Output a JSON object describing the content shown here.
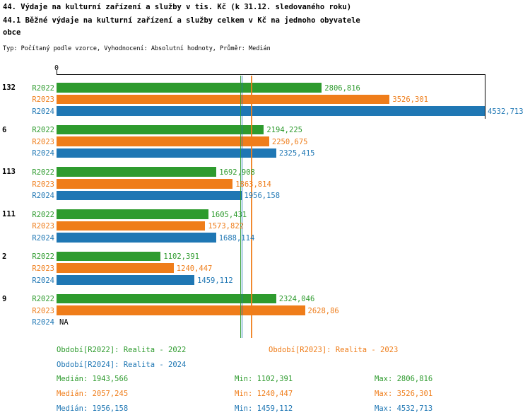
{
  "title_line1": "44. Výdaje na kulturní zařízení a služby v tis. Kč (k 31.12. sledovaného roku)",
  "title_line2": "44.1 Běžné výdaje na kulturní zařízení a služby celkem v Kč na jednoho obyvatele obce",
  "subtitle": "Typ: Počítaný podle vzorce, Vyhodnocení: Absolutní hodnoty, Průměr: Medián",
  "axis_zero_label": "0",
  "colors": {
    "r2022": "#2e9b2e",
    "r2023": "#ef7d1a",
    "r2024": "#1f77b4",
    "axis": "#000000",
    "na_text": "#000000"
  },
  "chart_data": {
    "type": "bar",
    "orientation": "horizontal",
    "value_axis_min": 0,
    "value_axis_max": 4532.713,
    "grid": false,
    "series": [
      "R2022",
      "R2023",
      "R2024"
    ],
    "groups": [
      {
        "label": "132",
        "values": [
          2806.816,
          3526.301,
          4532.713
        ],
        "labels": [
          "2806,816",
          "3526,301",
          "4532,713"
        ]
      },
      {
        "label": "6",
        "values": [
          2194.225,
          2250.675,
          2325.415
        ],
        "labels": [
          "2194,225",
          "2250,675",
          "2325,415"
        ]
      },
      {
        "label": "113",
        "values": [
          1692.908,
          1863.814,
          1956.158
        ],
        "labels": [
          "1692,908",
          "1863,814",
          "1956,158"
        ]
      },
      {
        "label": "111",
        "values": [
          1605.431,
          1573.822,
          1688.114
        ],
        "labels": [
          "1605,431",
          "1573,822",
          "1688,114"
        ]
      },
      {
        "label": "2",
        "values": [
          1102.391,
          1240.447,
          1459.112
        ],
        "labels": [
          "1102,391",
          "1240,447",
          "1459,112"
        ]
      },
      {
        "label": "9",
        "values": [
          2324.046,
          2628.86,
          null
        ],
        "labels": [
          "2324,046",
          "2628,86",
          "NA"
        ]
      }
    ],
    "medians": {
      "R2022": 1943.566,
      "R2023": 2057.245,
      "R2024": 1956.158
    },
    "na_label": "NA"
  },
  "legend": [
    {
      "series": "R2022",
      "label": "Období[R2022]: Realita - 2022"
    },
    {
      "series": "R2023",
      "label": "Období[R2023]: Realita - 2023"
    },
    {
      "series": "R2024",
      "label": "Období[R2024]: Realita - 2024"
    }
  ],
  "stats": [
    {
      "series": "R2022",
      "median": "Medián: 1943,566",
      "min": "Min: 1102,391",
      "max": "Max: 2806,816"
    },
    {
      "series": "R2023",
      "median": "Medián: 2057,245",
      "min": "Min: 1240,447",
      "max": "Max: 3526,301"
    },
    {
      "series": "R2024",
      "median": "Medián: 1956,158",
      "min": "Min: 1459,112",
      "max": "Max: 4532,713"
    }
  ]
}
